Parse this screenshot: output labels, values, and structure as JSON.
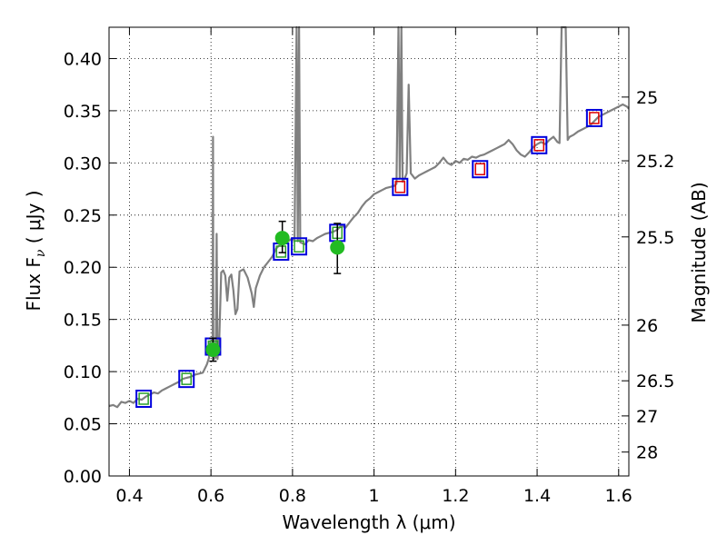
{
  "chart_data": {
    "type": "scatter",
    "xlabel": "Wavelength  λ (μm)",
    "ylabel": "Flux  F",
    "ylabel_sub": "ν",
    "ylabel_unit": "  ( μJy )",
    "y2label": "Magnitude (AB)",
    "xlim": [
      0.35,
      1.625
    ],
    "ylim": [
      0.0,
      0.43
    ],
    "grid": true,
    "x_ticks": [
      {
        "v": 0.4,
        "label": "0.4"
      },
      {
        "v": 0.6,
        "label": "0.6"
      },
      {
        "v": 0.8,
        "label": "0.8"
      },
      {
        "v": 1.0,
        "label": "1"
      },
      {
        "v": 1.2,
        "label": "1.2"
      },
      {
        "v": 1.4,
        "label": "1.4"
      },
      {
        "v": 1.6,
        "label": "1.6"
      }
    ],
    "y_ticks": [
      {
        "v": 0.0,
        "label": "0.00"
      },
      {
        "v": 0.05,
        "label": "0.05"
      },
      {
        "v": 0.1,
        "label": "0.10"
      },
      {
        "v": 0.15,
        "label": "0.15"
      },
      {
        "v": 0.2,
        "label": "0.20"
      },
      {
        "v": 0.25,
        "label": "0.25"
      },
      {
        "v": 0.3,
        "label": "0.30"
      },
      {
        "v": 0.35,
        "label": "0.35"
      },
      {
        "v": 0.4,
        "label": "0.40"
      }
    ],
    "y2_ticks": [
      {
        "mag": 25,
        "label": "25"
      },
      {
        "mag": 25.2,
        "label": "25.2"
      },
      {
        "mag": 25.5,
        "label": "25.5"
      },
      {
        "mag": 26,
        "label": "26"
      },
      {
        "mag": 26.5,
        "label": "26.5"
      },
      {
        "mag": 27,
        "label": "27"
      },
      {
        "mag": 28,
        "label": "28"
      }
    ],
    "model_spectrum": {
      "color": "#808080",
      "points": [
        [
          0.35,
          0.067
        ],
        [
          0.36,
          0.068
        ],
        [
          0.37,
          0.066
        ],
        [
          0.38,
          0.071
        ],
        [
          0.39,
          0.07
        ],
        [
          0.4,
          0.072
        ],
        [
          0.41,
          0.07
        ],
        [
          0.42,
          0.074
        ],
        [
          0.43,
          0.073
        ],
        [
          0.44,
          0.076
        ],
        [
          0.45,
          0.078
        ],
        [
          0.46,
          0.08
        ],
        [
          0.47,
          0.079
        ],
        [
          0.48,
          0.082
        ],
        [
          0.49,
          0.084
        ],
        [
          0.5,
          0.086
        ],
        [
          0.51,
          0.088
        ],
        [
          0.52,
          0.09
        ],
        [
          0.53,
          0.093
        ],
        [
          0.54,
          0.094
        ],
        [
          0.55,
          0.095
        ],
        [
          0.56,
          0.097
        ],
        [
          0.57,
          0.098
        ],
        [
          0.58,
          0.099
        ],
        [
          0.59,
          0.107
        ],
        [
          0.595,
          0.113
        ],
        [
          0.598,
          0.128
        ],
        [
          0.6,
          0.115
        ],
        [
          0.602,
          0.122
        ],
        [
          0.604,
          0.125
        ],
        [
          0.605,
          0.325
        ],
        [
          0.606,
          0.118
        ],
        [
          0.608,
          0.112
        ],
        [
          0.612,
          0.114
        ],
        [
          0.614,
          0.232
        ],
        [
          0.616,
          0.112
        ],
        [
          0.62,
          0.125
        ],
        [
          0.625,
          0.195
        ],
        [
          0.63,
          0.197
        ],
        [
          0.635,
          0.192
        ],
        [
          0.64,
          0.168
        ],
        [
          0.645,
          0.19
        ],
        [
          0.65,
          0.193
        ],
        [
          0.655,
          0.178
        ],
        [
          0.66,
          0.155
        ],
        [
          0.665,
          0.16
        ],
        [
          0.67,
          0.196
        ],
        [
          0.68,
          0.198
        ],
        [
          0.69,
          0.19
        ],
        [
          0.7,
          0.175
        ],
        [
          0.705,
          0.162
        ],
        [
          0.71,
          0.18
        ],
        [
          0.72,
          0.192
        ],
        [
          0.73,
          0.2
        ],
        [
          0.74,
          0.205
        ],
        [
          0.75,
          0.21
        ],
        [
          0.76,
          0.218
        ],
        [
          0.77,
          0.222
        ],
        [
          0.78,
          0.226
        ],
        [
          0.79,
          0.225
        ],
        [
          0.8,
          0.228
        ],
        [
          0.805,
          0.225
        ],
        [
          0.81,
          0.43
        ],
        [
          0.813,
          0.225
        ],
        [
          0.816,
          0.43
        ],
        [
          0.819,
          0.224
        ],
        [
          0.83,
          0.222
        ],
        [
          0.84,
          0.226
        ],
        [
          0.85,
          0.225
        ],
        [
          0.86,
          0.228
        ],
        [
          0.87,
          0.23
        ],
        [
          0.88,
          0.232
        ],
        [
          0.89,
          0.233
        ],
        [
          0.9,
          0.234
        ],
        [
          0.91,
          0.236
        ],
        [
          0.92,
          0.24
        ],
        [
          0.93,
          0.238
        ],
        [
          0.94,
          0.243
        ],
        [
          0.95,
          0.248
        ],
        [
          0.96,
          0.252
        ],
        [
          0.97,
          0.258
        ],
        [
          0.98,
          0.263
        ],
        [
          0.99,
          0.266
        ],
        [
          1.0,
          0.27
        ],
        [
          1.01,
          0.272
        ],
        [
          1.02,
          0.274
        ],
        [
          1.03,
          0.276
        ],
        [
          1.04,
          0.277
        ],
        [
          1.05,
          0.278
        ],
        [
          1.055,
          0.28
        ],
        [
          1.06,
          0.43
        ],
        [
          1.063,
          0.285
        ],
        [
          1.067,
          0.43
        ],
        [
          1.07,
          0.282
        ],
        [
          1.075,
          0.285
        ],
        [
          1.08,
          0.29
        ],
        [
          1.085,
          0.375
        ],
        [
          1.09,
          0.29
        ],
        [
          1.1,
          0.285
        ],
        [
          1.11,
          0.288
        ],
        [
          1.12,
          0.29
        ],
        [
          1.13,
          0.292
        ],
        [
          1.14,
          0.294
        ],
        [
          1.15,
          0.296
        ],
        [
          1.16,
          0.3
        ],
        [
          1.17,
          0.305
        ],
        [
          1.18,
          0.3
        ],
        [
          1.19,
          0.298
        ],
        [
          1.2,
          0.302
        ],
        [
          1.21,
          0.3
        ],
        [
          1.22,
          0.304
        ],
        [
          1.23,
          0.303
        ],
        [
          1.24,
          0.306
        ],
        [
          1.25,
          0.305
        ],
        [
          1.26,
          0.307
        ],
        [
          1.27,
          0.308
        ],
        [
          1.28,
          0.31
        ],
        [
          1.29,
          0.312
        ],
        [
          1.3,
          0.314
        ],
        [
          1.31,
          0.316
        ],
        [
          1.32,
          0.318
        ],
        [
          1.33,
          0.322
        ],
        [
          1.34,
          0.318
        ],
        [
          1.35,
          0.312
        ],
        [
          1.36,
          0.308
        ],
        [
          1.37,
          0.306
        ],
        [
          1.38,
          0.31
        ],
        [
          1.39,
          0.315
        ],
        [
          1.4,
          0.318
        ],
        [
          1.41,
          0.32
        ],
        [
          1.42,
          0.318
        ],
        [
          1.43,
          0.322
        ],
        [
          1.44,
          0.325
        ],
        [
          1.45,
          0.32
        ],
        [
          1.455,
          0.319
        ],
        [
          1.46,
          0.43
        ],
        [
          1.47,
          0.43
        ],
        [
          1.475,
          0.322
        ],
        [
          1.48,
          0.325
        ],
        [
          1.49,
          0.327
        ],
        [
          1.5,
          0.33
        ],
        [
          1.51,
          0.332
        ],
        [
          1.52,
          0.334
        ],
        [
          1.53,
          0.336
        ],
        [
          1.54,
          0.34
        ],
        [
          1.55,
          0.344
        ],
        [
          1.56,
          0.346
        ],
        [
          1.57,
          0.348
        ],
        [
          1.58,
          0.35
        ],
        [
          1.59,
          0.352
        ],
        [
          1.6,
          0.354
        ],
        [
          1.61,
          0.356
        ],
        [
          1.62,
          0.354
        ],
        [
          1.625,
          0.352
        ]
      ]
    },
    "synthetic_photometry": [
      {
        "x": 0.435,
        "y": 0.074,
        "edge": "#0000dd",
        "inner": "#2aa02a"
      },
      {
        "x": 0.54,
        "y": 0.093,
        "edge": "#0000dd",
        "inner": "#2aa02a"
      },
      {
        "x": 0.605,
        "y": 0.124,
        "edge": "#0000dd",
        "inner": "#2aa02a"
      },
      {
        "x": 0.772,
        "y": 0.215,
        "edge": "#0000dd",
        "inner": "#2aa02a"
      },
      {
        "x": 0.816,
        "y": 0.22,
        "edge": "#0000dd",
        "inner": "#2aa02a"
      },
      {
        "x": 0.91,
        "y": 0.233,
        "edge": "#0000dd",
        "inner": "#2aa02a"
      },
      {
        "x": 1.064,
        "y": 0.277,
        "edge": "#0000dd",
        "inner": "#dd0000"
      },
      {
        "x": 1.26,
        "y": 0.294,
        "edge": "#0000dd",
        "inner": "#dd0000"
      },
      {
        "x": 1.405,
        "y": 0.317,
        "edge": "#0000dd",
        "inner": "#dd0000"
      },
      {
        "x": 1.54,
        "y": 0.343,
        "edge": "#0000dd",
        "inner": "#dd0000"
      }
    ],
    "observed_photometry": {
      "color": "#22bb22",
      "points": [
        {
          "x": 0.605,
          "y": 0.121,
          "yerr_low": 0.11,
          "yerr_high": 0.132
        },
        {
          "x": 0.775,
          "y": 0.228,
          "yerr_low": 0.214,
          "yerr_high": 0.244
        },
        {
          "x": 0.91,
          "y": 0.219,
          "yerr_low": 0.194,
          "yerr_high": 0.242
        }
      ]
    }
  }
}
